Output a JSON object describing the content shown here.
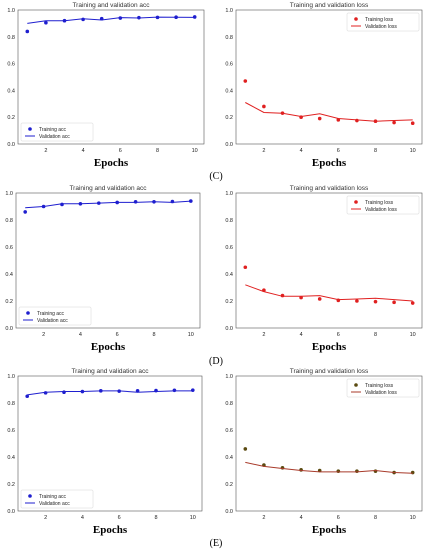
{
  "row_labels": [
    "(C)",
    "(D)",
    "(E)"
  ],
  "chart_data": [
    {
      "type": "scatter",
      "title": "Training and validation acc",
      "xlabel": "Epochs",
      "ylabel": "",
      "xlim": [
        0.5,
        10.5
      ],
      "ylim": [
        0,
        1.0
      ],
      "xticks": [
        2,
        4,
        6,
        8,
        10
      ],
      "yticks": [
        0,
        0.2,
        0.4,
        0.6,
        0.8,
        1.0
      ],
      "legend_position": "bottom-left",
      "grid": false,
      "series": [
        {
          "name": "Training acc",
          "style": "dots",
          "color": "#1f1fcf",
          "x": [
            1,
            2,
            3,
            4,
            5,
            6,
            7,
            8,
            9,
            10
          ],
          "y": [
            0.84,
            0.905,
            0.92,
            0.93,
            0.935,
            0.94,
            0.943,
            0.945,
            0.946,
            0.948
          ]
        },
        {
          "name": "Validation acc",
          "style": "line",
          "color": "#1f1fcf",
          "x": [
            1,
            2,
            3,
            4,
            5,
            6,
            7,
            8,
            9,
            10
          ],
          "y": [
            0.9,
            0.92,
            0.92,
            0.935,
            0.925,
            0.943,
            0.94,
            0.947,
            0.946,
            0.945
          ]
        }
      ]
    },
    {
      "type": "scatter",
      "title": "Training and validation loss",
      "xlabel": "Epochs",
      "ylabel": "",
      "xlim": [
        0.5,
        10.5
      ],
      "ylim": [
        0,
        1.0
      ],
      "xticks": [
        2,
        4,
        6,
        8,
        10
      ],
      "yticks": [
        0,
        0.2,
        0.4,
        0.6,
        0.8,
        1.0
      ],
      "legend_position": "top-right",
      "grid": false,
      "series": [
        {
          "name": "Training loss",
          "style": "dots",
          "color": "#e02020",
          "x": [
            1,
            2,
            3,
            4,
            5,
            6,
            7,
            8,
            9,
            10
          ],
          "y": [
            0.47,
            0.28,
            0.23,
            0.2,
            0.19,
            0.18,
            0.175,
            0.17,
            0.16,
            0.155
          ]
        },
        {
          "name": "Validation loss",
          "style": "line",
          "color": "#e02020",
          "x": [
            1,
            2,
            3,
            4,
            5,
            6,
            7,
            8,
            9,
            10
          ],
          "y": [
            0.31,
            0.235,
            0.23,
            0.205,
            0.225,
            0.19,
            0.18,
            0.17,
            0.175,
            0.18
          ]
        }
      ]
    },
    {
      "type": "scatter",
      "title": "Training and validation acc",
      "xlabel": "Epochs",
      "ylabel": "",
      "xlim": [
        0.5,
        10.5
      ],
      "ylim": [
        0,
        1.0
      ],
      "xticks": [
        2,
        4,
        6,
        8,
        10
      ],
      "yticks": [
        0,
        0.2,
        0.4,
        0.6,
        0.8,
        1.0
      ],
      "legend_position": "bottom-left",
      "grid": false,
      "series": [
        {
          "name": "Training acc",
          "style": "dots",
          "color": "#1f1fcf",
          "x": [
            1,
            2,
            3,
            4,
            5,
            6,
            7,
            8,
            9,
            10
          ],
          "y": [
            0.86,
            0.9,
            0.915,
            0.92,
            0.925,
            0.93,
            0.935,
            0.935,
            0.937,
            0.94
          ]
        },
        {
          "name": "Validation acc",
          "style": "line",
          "color": "#1f1fcf",
          "x": [
            1,
            2,
            3,
            4,
            5,
            6,
            7,
            8,
            9,
            10
          ],
          "y": [
            0.89,
            0.9,
            0.92,
            0.92,
            0.925,
            0.93,
            0.93,
            0.935,
            0.93,
            0.94
          ]
        }
      ]
    },
    {
      "type": "scatter",
      "title": "Training and validation loss",
      "xlabel": "Epochs",
      "ylabel": "",
      "xlim": [
        0.5,
        10.5
      ],
      "ylim": [
        0,
        1.0
      ],
      "xticks": [
        2,
        4,
        6,
        8,
        10
      ],
      "yticks": [
        0,
        0.2,
        0.4,
        0.6,
        0.8,
        1.0
      ],
      "legend_position": "top-right",
      "grid": false,
      "series": [
        {
          "name": "Training loss",
          "style": "dots",
          "color": "#e02020",
          "x": [
            1,
            2,
            3,
            4,
            5,
            6,
            7,
            8,
            9,
            10
          ],
          "y": [
            0.45,
            0.28,
            0.24,
            0.225,
            0.215,
            0.205,
            0.2,
            0.195,
            0.19,
            0.185
          ]
        },
        {
          "name": "Validation loss",
          "style": "line",
          "color": "#e02020",
          "x": [
            1,
            2,
            3,
            4,
            5,
            6,
            7,
            8,
            9,
            10
          ],
          "y": [
            0.32,
            0.27,
            0.235,
            0.235,
            0.24,
            0.21,
            0.215,
            0.22,
            0.21,
            0.2
          ]
        }
      ]
    },
    {
      "type": "scatter",
      "title": "Training and validation acc",
      "xlabel": "Epochs",
      "ylabel": "",
      "xlim": [
        0.5,
        10.5
      ],
      "ylim": [
        0,
        1.0
      ],
      "xticks": [
        2,
        4,
        6,
        8,
        10
      ],
      "yticks": [
        0,
        0.2,
        0.4,
        0.6,
        0.8,
        1.0
      ],
      "legend_position": "bottom-left",
      "grid": false,
      "series": [
        {
          "name": "Training acc",
          "style": "dots",
          "color": "#1f1fcf",
          "x": [
            1,
            2,
            3,
            4,
            5,
            6,
            7,
            8,
            9,
            10
          ],
          "y": [
            0.85,
            0.875,
            0.88,
            0.885,
            0.89,
            0.888,
            0.89,
            0.892,
            0.894,
            0.895
          ]
        },
        {
          "name": "Validation acc",
          "style": "line",
          "color": "#1f1fcf",
          "x": [
            1,
            2,
            3,
            4,
            5,
            6,
            7,
            8,
            9,
            10
          ],
          "y": [
            0.86,
            0.88,
            0.885,
            0.885,
            0.89,
            0.89,
            0.88,
            0.885,
            0.89,
            0.89
          ]
        }
      ]
    },
    {
      "type": "scatter",
      "title": "Training and validation loss",
      "xlabel": "Epochs",
      "ylabel": "",
      "xlim": [
        0.5,
        10.5
      ],
      "ylim": [
        0,
        1.0
      ],
      "xticks": [
        2,
        4,
        6,
        8,
        10
      ],
      "yticks": [
        0,
        0.2,
        0.4,
        0.6,
        0.8,
        1.0
      ],
      "legend_position": "top-right",
      "grid": false,
      "series": [
        {
          "name": "Training loss",
          "style": "dots",
          "color": "#5a4a10",
          "x": [
            1,
            2,
            3,
            4,
            5,
            6,
            7,
            8,
            9,
            10
          ],
          "y": [
            0.46,
            0.34,
            0.32,
            0.305,
            0.3,
            0.295,
            0.295,
            0.295,
            0.285,
            0.285
          ]
        },
        {
          "name": "Validation loss",
          "style": "line",
          "color": "#a83a2a",
          "x": [
            1,
            2,
            3,
            4,
            5,
            6,
            7,
            8,
            9,
            10
          ],
          "y": [
            0.36,
            0.33,
            0.315,
            0.3,
            0.29,
            0.29,
            0.29,
            0.3,
            0.285,
            0.28
          ]
        }
      ]
    }
  ]
}
